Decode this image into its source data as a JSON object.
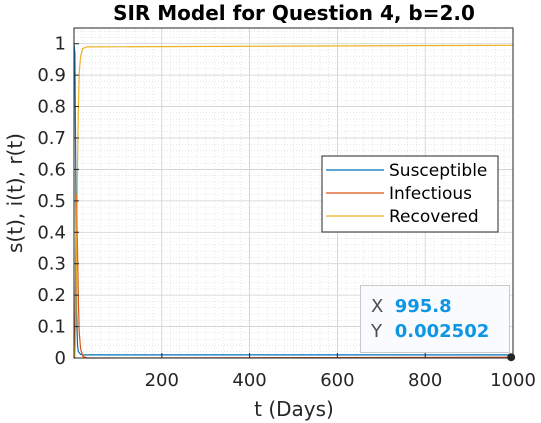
{
  "chart_data": {
    "type": "line",
    "title": "SIR Model for Question 4, b=2.0",
    "xlabel": "t (Days)",
    "ylabel": "s(t), i(t), r(t)",
    "xlim": [
      0,
      1000
    ],
    "ylim": [
      0,
      1.05
    ],
    "xticks": [
      200,
      400,
      600,
      800,
      1000
    ],
    "yticks": [
      0,
      0.1,
      0.2,
      0.3,
      0.4,
      0.5,
      0.6,
      0.7,
      0.8,
      0.9,
      1
    ],
    "grid": "minor",
    "legend_position": "right",
    "series": [
      {
        "name": "Susceptible",
        "color": "#0072bd",
        "x": [
          0,
          2,
          4,
          6,
          8,
          10,
          15,
          20,
          30,
          1000
        ],
        "values": [
          0.999,
          0.97,
          0.6,
          0.15,
          0.04,
          0.02,
          0.012,
          0.01,
          0.01,
          0.01
        ]
      },
      {
        "name": "Infectious",
        "color": "#d95319",
        "x": [
          0,
          2,
          4,
          6,
          8,
          10,
          12,
          15,
          20,
          30,
          1000
        ],
        "values": [
          0.001,
          0.03,
          0.3,
          0.52,
          0.35,
          0.18,
          0.08,
          0.03,
          0.005,
          0,
          0.002502
        ]
      },
      {
        "name": "Recovered",
        "color": "#edb120",
        "x": [
          0,
          2,
          4,
          6,
          8,
          10,
          12,
          15,
          20,
          30,
          1000
        ],
        "values": [
          0,
          0.0,
          0.1,
          0.33,
          0.61,
          0.8,
          0.91,
          0.96,
          0.985,
          0.99,
          0.995
        ]
      }
    ],
    "datatip": {
      "x_label": "X",
      "x_value": "995.8",
      "y_label": "Y",
      "y_value": "0.002502"
    }
  }
}
